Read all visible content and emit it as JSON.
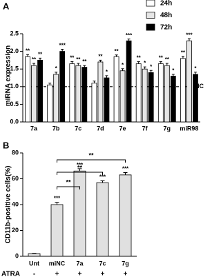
{
  "chart_data": [
    {
      "type": "grouped-bar",
      "panel_label": "A",
      "y_label": "miRNA expression",
      "categories": [
        "7a",
        "7b",
        "7c",
        "7d",
        "7e",
        "7f",
        "7g",
        "miR98"
      ],
      "series": [
        {
          "name": "24h",
          "color": "#ffffff",
          "values": [
            1.85,
            1.05,
            1.65,
            1.1,
            1.85,
            1.65,
            1.65,
            1.8
          ],
          "errors": [
            0.06,
            0.05,
            0.06,
            0.06,
            0.05,
            0.06,
            0.06,
            0.06
          ],
          "annotations": [
            "**",
            null,
            "**",
            null,
            "**",
            "**",
            "**",
            "**"
          ]
        },
        {
          "name": "48h",
          "color": "#e6e6e6",
          "values": [
            1.6,
            1.35,
            1.6,
            1.7,
            1.45,
            1.5,
            1.6,
            2.3
          ],
          "errors": [
            0.06,
            0.06,
            0.06,
            0.05,
            0.06,
            0.06,
            0.06,
            0.06
          ],
          "annotations": [
            "**",
            "*",
            "**",
            "**",
            "*",
            "*",
            "**",
            "***"
          ]
        },
        {
          "name": "72h",
          "color": "#000000",
          "values": [
            1.75,
            2.0,
            1.55,
            1.25,
            2.3,
            1.4,
            1.3,
            1.35
          ],
          "errors": [
            0.06,
            0.06,
            0.05,
            0.06,
            0.05,
            0.06,
            0.05,
            0.06
          ],
          "annotations": [
            "**",
            "***",
            "**",
            "*",
            "***",
            "*",
            "*",
            "*"
          ]
        }
      ],
      "ylim": [
        0,
        2.5
      ],
      "yticks": [
        {
          "value": 0,
          "label": "0.0"
        },
        0.5,
        {
          "value": 1,
          "label": "1.0"
        },
        1.5,
        {
          "value": 2,
          "label": "2.0"
        },
        2.5
      ],
      "reference_line": {
        "value": 1,
        "label": "NC"
      }
    },
    {
      "type": "bar",
      "panel_label": "B",
      "y_label": "CD11b-positive cells(%)",
      "categories": [
        "Unt",
        "miNC",
        "7a",
        "7c",
        "7g"
      ],
      "values": [
        2,
        40,
        66,
        57,
        63
      ],
      "errors": [
        0.3,
        1.8,
        1.8,
        1.5,
        1.8
      ],
      "annotations": [
        null,
        "***",
        "***",
        "***",
        "***"
      ],
      "color": "#e0e0e0",
      "ylim": [
        0,
        80
      ],
      "yticks": [
        0,
        20,
        40,
        60,
        80
      ],
      "comparisons": [
        {
          "between": [
            "miNC",
            "7a"
          ],
          "label": "**"
        },
        {
          "between": [
            "miNC",
            "7c"
          ],
          "label": "**"
        },
        {
          "between": [
            "miNC",
            "7g"
          ],
          "label": "**"
        }
      ],
      "treatment": {
        "label": "ATRA",
        "values": [
          "-",
          "+",
          "+",
          "+",
          "+"
        ]
      }
    }
  ]
}
